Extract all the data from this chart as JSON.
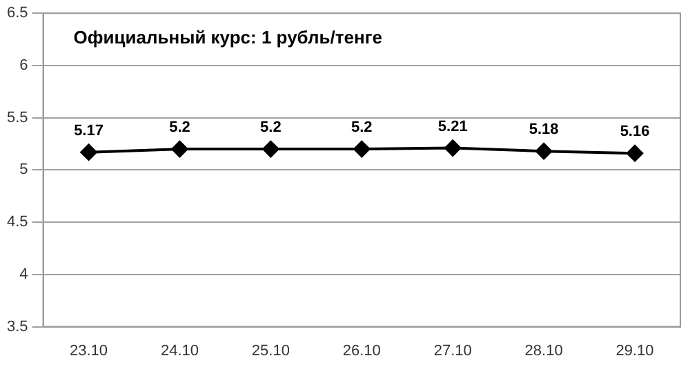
{
  "chart_data": {
    "type": "line",
    "title": "Официальный курс: 1 рубль/тенге",
    "categories": [
      "23.10",
      "24.10",
      "25.10",
      "26.10",
      "27.10",
      "28.10",
      "29.10"
    ],
    "series": [
      {
        "color": "#000000",
        "values": [
          5.17,
          5.2,
          5.2,
          5.2,
          5.21,
          5.18,
          5.16
        ]
      }
    ],
    "ylim": [
      3.5,
      6.5
    ],
    "yticks": [
      3.5,
      4,
      4.5,
      5,
      5.5,
      6,
      6.5
    ],
    "grid": "y",
    "legend": false,
    "marker": "diamond",
    "line_style": "solid",
    "data_labels": true
  }
}
